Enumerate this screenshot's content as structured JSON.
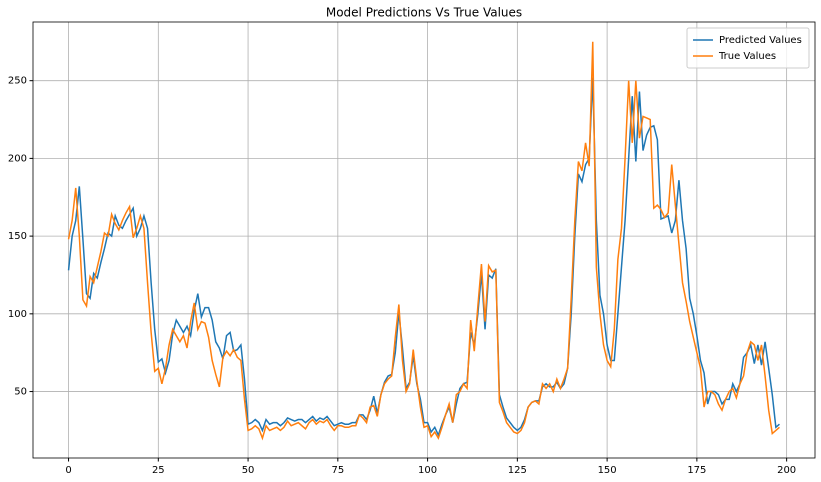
{
  "chart_data": {
    "type": "line",
    "title": "Model Predictions Vs True Values",
    "x": [
      0,
      1,
      2,
      3,
      4,
      5,
      6,
      7,
      8,
      9,
      10,
      11,
      12,
      13,
      14,
      15,
      16,
      17,
      18,
      19,
      20,
      21,
      22,
      23,
      24,
      25,
      26,
      27,
      28,
      29,
      30,
      31,
      32,
      33,
      34,
      35,
      36,
      37,
      38,
      39,
      40,
      41,
      42,
      43,
      44,
      45,
      46,
      47,
      48,
      49,
      50,
      51,
      52,
      53,
      54,
      55,
      56,
      57,
      58,
      59,
      60,
      61,
      62,
      63,
      64,
      65,
      66,
      67,
      68,
      69,
      70,
      71,
      72,
      73,
      74,
      75,
      76,
      77,
      78,
      79,
      80,
      81,
      82,
      83,
      84,
      85,
      86,
      87,
      88,
      89,
      90,
      91,
      92,
      93,
      94,
      95,
      96,
      97,
      98,
      99,
      100,
      101,
      102,
      103,
      104,
      105,
      106,
      107,
      108,
      109,
      110,
      111,
      112,
      113,
      114,
      115,
      116,
      117,
      118,
      119,
      120,
      121,
      122,
      123,
      124,
      125,
      126,
      127,
      128,
      129,
      130,
      131,
      132,
      133,
      134,
      135,
      136,
      137,
      138,
      139,
      140,
      141,
      142,
      143,
      144,
      145,
      146,
      147,
      148,
      149,
      150,
      151,
      152,
      153,
      154,
      155,
      156,
      157,
      158,
      159,
      160,
      161,
      162,
      163,
      164,
      165,
      166,
      167,
      168,
      169,
      170,
      171,
      172,
      173,
      174,
      175,
      176,
      177,
      178,
      179,
      180,
      181,
      182,
      183,
      184,
      185,
      186,
      187,
      188,
      189,
      190,
      191,
      192,
      193,
      194,
      195,
      196,
      197,
      198
    ],
    "series": [
      {
        "name": "Predicted Values",
        "color": "#1f77b4",
        "values": [
          128,
          150,
          160,
          182,
          148,
          113,
          110,
          126,
          123,
          133,
          142,
          152,
          150,
          163,
          157,
          155,
          160,
          164,
          168,
          150,
          155,
          163,
          155,
          120,
          90,
          69,
          71,
          62,
          70,
          87,
          96,
          92,
          88,
          92,
          86,
          102,
          113,
          98,
          104,
          104,
          96,
          82,
          78,
          71,
          86,
          88,
          76,
          77,
          80,
          58,
          29,
          30,
          32,
          30,
          25,
          32,
          29,
          30,
          30,
          28,
          30,
          33,
          32,
          31,
          32,
          32,
          30,
          32,
          34,
          31,
          33,
          32,
          34,
          31,
          28,
          29,
          30,
          29,
          29,
          30,
          30,
          35,
          35,
          32,
          38,
          47,
          36,
          48,
          56,
          60,
          61,
          75,
          101,
          78,
          52,
          56,
          73,
          55,
          45,
          30,
          30,
          24,
          27,
          22,
          29,
          35,
          40,
          30,
          42,
          52,
          55,
          56,
          88,
          80,
          100,
          126,
          90,
          125,
          123,
          129,
          48,
          40,
          33,
          30,
          27,
          25,
          27,
          32,
          40,
          43,
          44,
          44,
          53,
          55,
          53,
          53,
          56,
          52,
          55,
          65,
          100,
          150,
          190,
          185,
          196,
          200,
          252,
          160,
          112,
          100,
          80,
          70,
          70,
          100,
          130,
          160,
          200,
          240,
          198,
          243,
          205,
          215,
          220,
          221,
          212,
          161,
          162,
          163,
          152,
          160,
          186,
          160,
          142,
          110,
          100,
          86,
          70,
          62,
          42,
          50,
          50,
          48,
          42,
          45,
          45,
          55,
          50,
          55,
          72,
          75,
          80,
          68,
          80,
          67,
          82,
          65,
          48,
          27,
          29
        ]
      },
      {
        "name": "True Values",
        "color": "#ff7f0e",
        "values": [
          148,
          160,
          181,
          150,
          109,
          105,
          124,
          120,
          130,
          140,
          152,
          150,
          164,
          158,
          154,
          160,
          165,
          169,
          149,
          155,
          163,
          155,
          120,
          88,
          63,
          65,
          55,
          65,
          80,
          90,
          86,
          82,
          86,
          78,
          95,
          107,
          90,
          95,
          94,
          85,
          70,
          61,
          53,
          72,
          76,
          73,
          77,
          72,
          70,
          45,
          25,
          26,
          28,
          26,
          20,
          28,
          25,
          26,
          27,
          25,
          27,
          31,
          28,
          29,
          30,
          28,
          26,
          30,
          32,
          29,
          31,
          30,
          32,
          28,
          25,
          28,
          28,
          27,
          27,
          28,
          28,
          35,
          33,
          30,
          40,
          41,
          34,
          48,
          55,
          58,
          60,
          85,
          106,
          70,
          50,
          55,
          77,
          57,
          40,
          27,
          28,
          21,
          24,
          20,
          27,
          35,
          42,
          30,
          48,
          50,
          55,
          52,
          96,
          76,
          105,
          132,
          95,
          131,
          127,
          128,
          43,
          37,
          30,
          27,
          24,
          23,
          25,
          30,
          40,
          43,
          44,
          42,
          55,
          52,
          55,
          50,
          58,
          52,
          58,
          65,
          110,
          160,
          198,
          192,
          210,
          195,
          275,
          130,
          100,
          80,
          70,
          66,
          90,
          135,
          155,
          200,
          250,
          210,
          250,
          213,
          227,
          226,
          225,
          168,
          170,
          167,
          162,
          165,
          196,
          170,
          145,
          120,
          108,
          95,
          85,
          75,
          65,
          40,
          50,
          50,
          48,
          42,
          38,
          45,
          50,
          52,
          46,
          55,
          60,
          75,
          82,
          80,
          70,
          80,
          60,
          38,
          23,
          25,
          27
        ]
      }
    ],
    "xlim": [
      -9.9,
      207.9
    ],
    "ylim": [
      7.25,
      287.75
    ],
    "xticks": [
      0,
      25,
      50,
      75,
      100,
      125,
      150,
      175,
      200
    ],
    "yticks": [
      50,
      100,
      150,
      200,
      250
    ],
    "grid": true,
    "legend": "upper right"
  }
}
